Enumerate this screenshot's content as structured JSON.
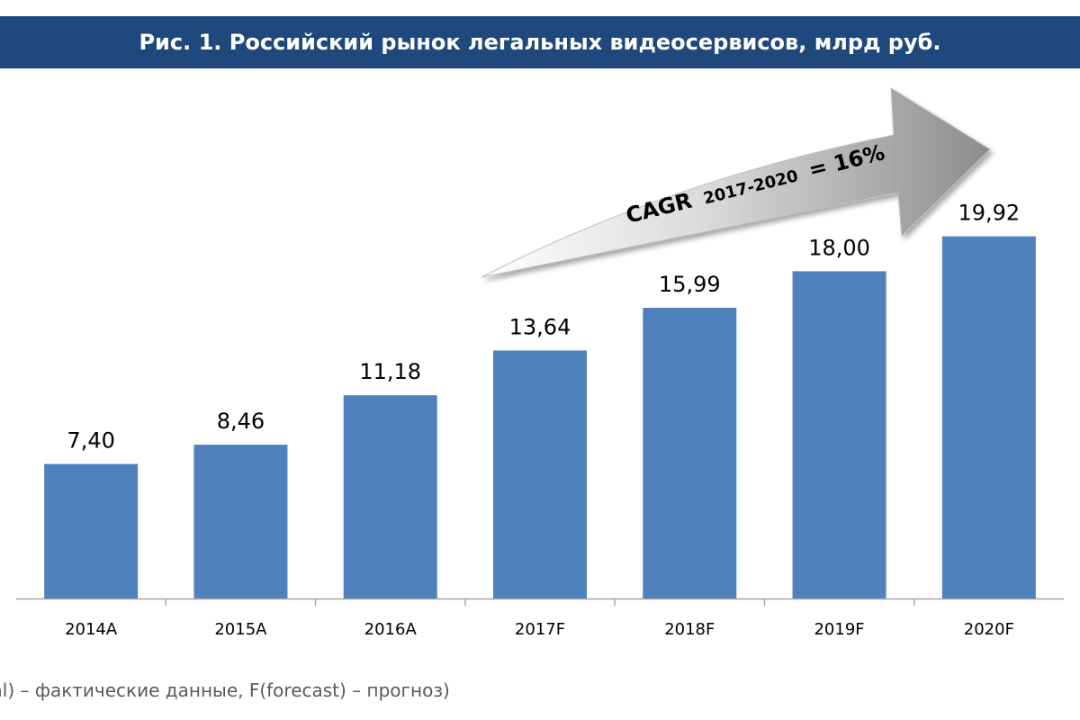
{
  "title": "Рис. 1. Российский рынок легальных видеосервисов, млрд руб.",
  "footnote": "tual) – фактические данные, F(forecast) – прогноз)",
  "cagr": {
    "label": "CAGR",
    "period": "2017-2020",
    "value": "= 16%"
  },
  "colors": {
    "title_bg": "#1f497d",
    "bar": "#4f81bd",
    "axis": "#a6a6a6"
  },
  "chart_data": {
    "type": "bar",
    "categories": [
      "2014A",
      "2015A",
      "2016A",
      "2017F",
      "2018F",
      "2019F",
      "2020F"
    ],
    "values": [
      7.4,
      8.46,
      11.18,
      13.64,
      15.99,
      18.0,
      19.92
    ],
    "data_labels": [
      "7,40",
      "8,46",
      "11,18",
      "13,64",
      "15,99",
      "18,00",
      "19,92"
    ],
    "title": "Рис. 1. Российский рынок легальных видеосервисов, млрд руб.",
    "xlabel": "",
    "ylabel": "",
    "ylim": [
      0,
      20.4
    ],
    "grid": false,
    "legend": "none"
  }
}
